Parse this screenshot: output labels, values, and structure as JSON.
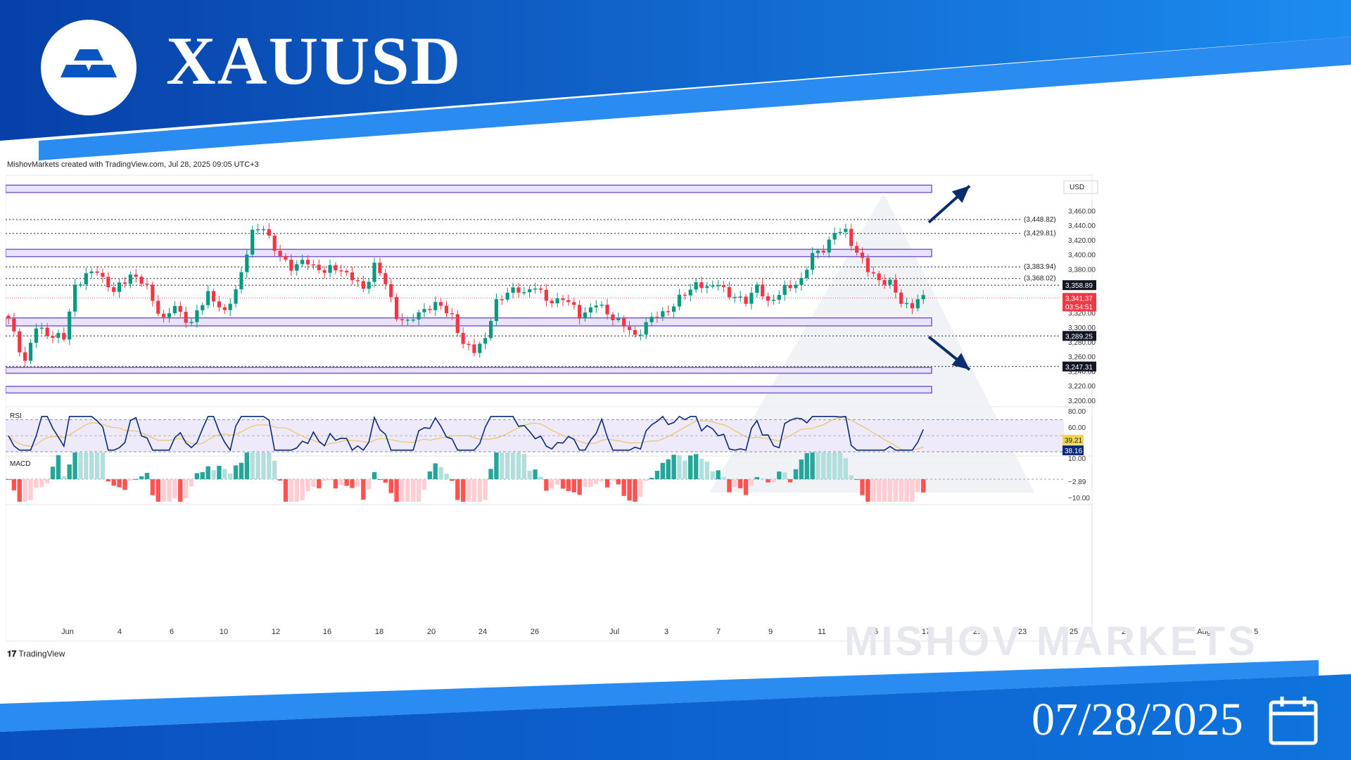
{
  "header": {
    "symbol": "XAUUSD",
    "date": "07/28/2025",
    "brand_watermark": "MISHOV MARKETS",
    "credit_line": "MishovMarkets created with TradingView.com, Jul 28, 2025 09:05 UTC+3",
    "tv_logo_text": "TradingView"
  },
  "colors": {
    "brand_blue": "#0a55c4",
    "brand_light_blue": "#1e8ff0",
    "up_candle": "#089981",
    "down_candle": "#f23645",
    "zone_fill": "#e9e4fb",
    "zone_border": "#7b5ccf",
    "rsi_line": "#0b2a7a",
    "rsi_ma": "#e8c56a",
    "arrow": "#0a2d6e"
  },
  "chart_data": {
    "type": "candlestick",
    "currency_label": "USD",
    "y_ticks": [
      3460,
      3440,
      3420,
      3400,
      3380,
      3360,
      3340,
      3320,
      3300,
      3280,
      3260,
      3240,
      3220,
      3200
    ],
    "y_tick_labels": [
      "3,460.00",
      "3,440.00",
      "3,420.00",
      "3,400.00",
      "3,380.00",
      "3,360.00",
      "3,340.00",
      "3,320.00",
      "3,300.00",
      "3,280.00",
      "3,260.00",
      "3,240.00",
      "3,220.00",
      "3,200.00"
    ],
    "ylim": [
      3195,
      3500
    ],
    "x_labels": [
      "Jun",
      "4",
      "6",
      "10",
      "12",
      "16",
      "18",
      "20",
      "24",
      "26",
      "Jul",
      "3",
      "7",
      "9",
      "11",
      "15",
      "17",
      "21",
      "23",
      "25",
      "29",
      "Aug",
      "5"
    ],
    "level_lines": [
      {
        "value": 3448.82,
        "label": "(3,448.82)"
      },
      {
        "value": 3429.81,
        "label": "(3,429.81)"
      },
      {
        "value": 3383.94,
        "label": "(3,383.94)"
      },
      {
        "value": 3368.02,
        "label": "(3,368.02)"
      }
    ],
    "price_tags": [
      {
        "value": 3358.89,
        "label": "3,358.89"
      },
      {
        "value": 3289.25,
        "label": "3,289.25"
      },
      {
        "value": 3247.31,
        "label": "3,247.31"
      }
    ],
    "last_price": {
      "value": 3341.37,
      "label": "3,341.37",
      "countdown": "03:54:51"
    },
    "zones": [
      {
        "low": 3486,
        "high": 3496
      },
      {
        "low": 3398,
        "high": 3408
      },
      {
        "low": 3303,
        "high": 3314
      },
      {
        "low": 3238,
        "high": 3246
      },
      {
        "low": 3211,
        "high": 3220
      }
    ],
    "arrows": [
      {
        "direction": "up",
        "from": 3445,
        "to": 3495
      },
      {
        "direction": "down",
        "from": 3288,
        "to": 3243
      }
    ],
    "anchors": [
      [
        0,
        3310
      ],
      [
        3,
        3255
      ],
      [
        5,
        3300
      ],
      [
        8,
        3290
      ],
      [
        10,
        3285
      ],
      [
        12,
        3360
      ],
      [
        16,
        3380
      ],
      [
        19,
        3348
      ],
      [
        22,
        3375
      ],
      [
        25,
        3355
      ],
      [
        28,
        3310
      ],
      [
        30,
        3330
      ],
      [
        33,
        3305
      ],
      [
        36,
        3350
      ],
      [
        39,
        3318
      ],
      [
        42,
        3375
      ],
      [
        44,
        3430
      ],
      [
        46,
        3442
      ],
      [
        48,
        3405
      ],
      [
        51,
        3385
      ],
      [
        54,
        3390
      ],
      [
        57,
        3378
      ],
      [
        60,
        3382
      ],
      [
        62,
        3368
      ],
      [
        64,
        3352
      ],
      [
        66,
        3388
      ],
      [
        68,
        3360
      ],
      [
        70,
        3318
      ],
      [
        72,
        3306
      ],
      [
        75,
        3328
      ],
      [
        78,
        3330
      ],
      [
        80,
        3318
      ],
      [
        82,
        3275
      ],
      [
        84,
        3272
      ],
      [
        86,
        3285
      ],
      [
        88,
        3335
      ],
      [
        90,
        3352
      ],
      [
        93,
        3348
      ],
      [
        95,
        3360
      ],
      [
        97,
        3335
      ],
      [
        100,
        3342
      ],
      [
        103,
        3318
      ],
      [
        106,
        3332
      ],
      [
        109,
        3316
      ],
      [
        111,
        3302
      ],
      [
        113,
        3290
      ],
      [
        115,
        3305
      ],
      [
        117,
        3318
      ],
      [
        120,
        3330
      ],
      [
        122,
        3348
      ],
      [
        124,
        3362
      ],
      [
        126,
        3352
      ],
      [
        128,
        3365
      ],
      [
        130,
        3342
      ],
      [
        133,
        3340
      ],
      [
        135,
        3355
      ],
      [
        137,
        3336
      ],
      [
        139,
        3348
      ],
      [
        141,
        3356
      ],
      [
        143,
        3368
      ],
      [
        145,
        3398
      ],
      [
        147,
        3410
      ],
      [
        149,
        3430
      ],
      [
        151,
        3432
      ],
      [
        153,
        3405
      ],
      [
        155,
        3378
      ],
      [
        157,
        3368
      ],
      [
        159,
        3360
      ],
      [
        161,
        3336
      ],
      [
        163,
        3331
      ],
      [
        165,
        3341
      ]
    ],
    "series_panels": [
      {
        "name": "RSI",
        "y_ticks": [
          80,
          60
        ],
        "y_tick_labels": [
          "80.00",
          "60.00"
        ],
        "value_tags": [
          "39.21",
          "38.16"
        ]
      },
      {
        "name": "MACD",
        "y_ticks": [
          10,
          -10
        ],
        "y_tick_labels": [
          "10.00",
          "−10.00"
        ],
        "value_tags": [
          "−2.89"
        ]
      }
    ]
  }
}
